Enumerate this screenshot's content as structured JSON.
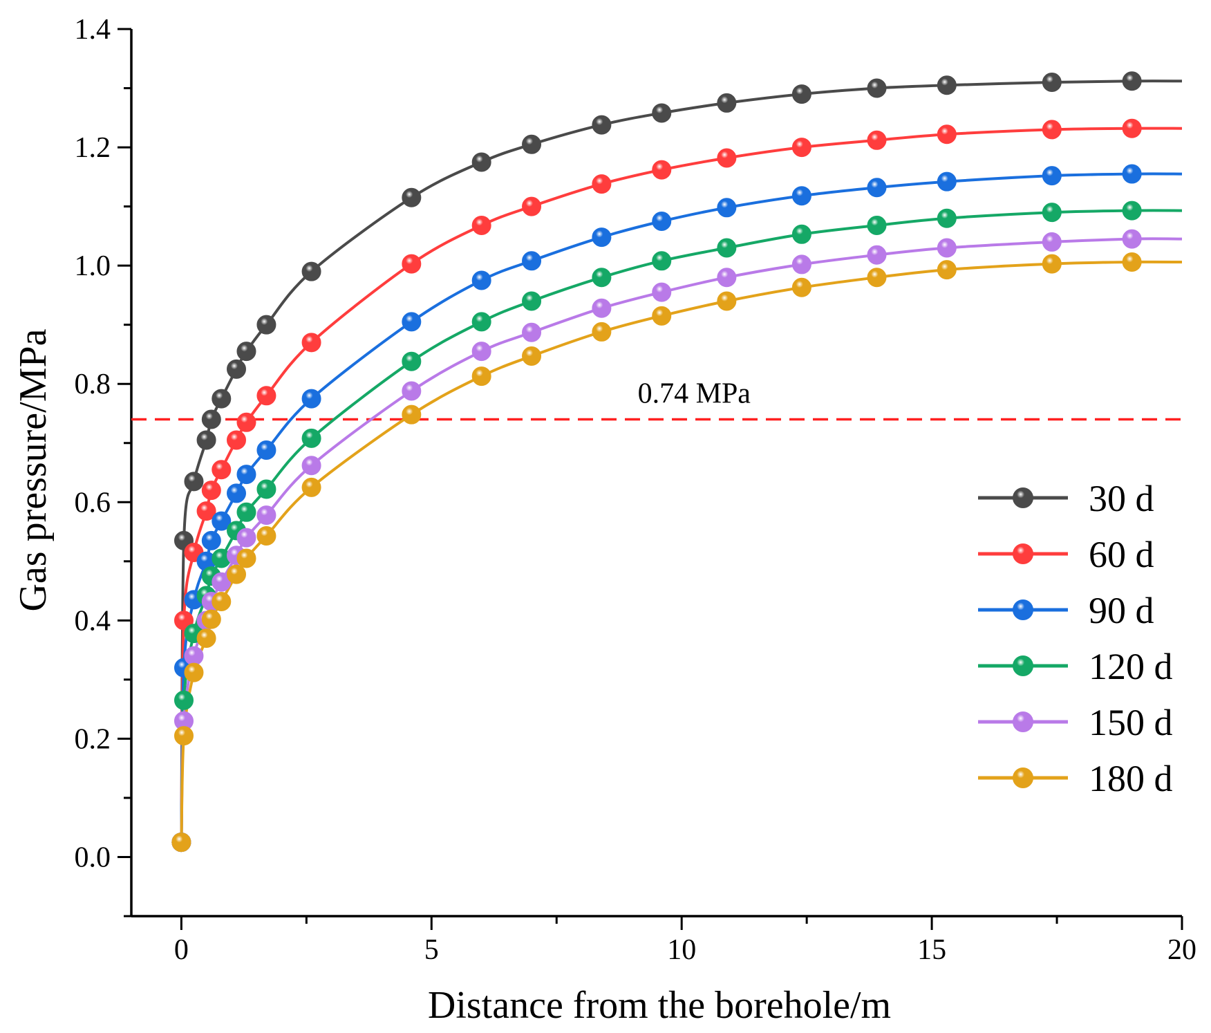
{
  "chart_data": {
    "type": "line",
    "title": "",
    "xlabel": "Distance from the borehole/m",
    "ylabel": "Gas pressure/MPa",
    "xlim": [
      -1,
      20
    ],
    "ylim": [
      -0.1,
      1.4
    ],
    "xticks": [
      0,
      5,
      10,
      15,
      20
    ],
    "yticks": [
      0.0,
      0.2,
      0.4,
      0.6,
      0.8,
      1.0,
      1.2,
      1.4
    ],
    "ytick_labels": [
      "0.0",
      "0.2",
      "0.4",
      "0.6",
      "0.8",
      "1.0",
      "1.2",
      "1.4"
    ],
    "grid": false,
    "legend_position": "right",
    "reference_line": {
      "y": 0.74,
      "label": "0.74 MPa",
      "color": "#ff2020",
      "style": "dashed"
    },
    "x": [
      0,
      0.05,
      0.25,
      0.5,
      0.6,
      0.8,
      1.1,
      1.3,
      1.7,
      2.6,
      4.6,
      6.0,
      7.0,
      8.4,
      9.6,
      10.9,
      12.4,
      13.9,
      15.3,
      17.4,
      19.0,
      20.0
    ],
    "series": [
      {
        "name": "30 d",
        "color": "#4a4a4a",
        "values": [
          0.025,
          0.535,
          0.635,
          0.705,
          0.74,
          0.775,
          0.825,
          0.855,
          0.9,
          0.99,
          1.115,
          1.175,
          1.205,
          1.238,
          1.258,
          1.275,
          1.29,
          1.3,
          1.305,
          1.31,
          1.312,
          1.312
        ]
      },
      {
        "name": "60 d",
        "color": "#ff3d3d",
        "values": [
          0.025,
          0.4,
          0.515,
          0.585,
          0.62,
          0.655,
          0.705,
          0.735,
          0.78,
          0.87,
          1.003,
          1.068,
          1.1,
          1.138,
          1.162,
          1.182,
          1.2,
          1.212,
          1.222,
          1.23,
          1.232,
          1.232
        ]
      },
      {
        "name": "90 d",
        "color": "#1a6fde",
        "values": [
          0.025,
          0.32,
          0.435,
          0.5,
          0.535,
          0.568,
          0.615,
          0.647,
          0.688,
          0.775,
          0.905,
          0.975,
          1.008,
          1.048,
          1.075,
          1.098,
          1.118,
          1.132,
          1.142,
          1.152,
          1.155,
          1.155
        ]
      },
      {
        "name": "120 d",
        "color": "#15a866",
        "values": [
          0.025,
          0.265,
          0.378,
          0.442,
          0.475,
          0.505,
          0.552,
          0.583,
          0.622,
          0.708,
          0.838,
          0.905,
          0.94,
          0.98,
          1.008,
          1.03,
          1.053,
          1.068,
          1.08,
          1.09,
          1.093,
          1.093
        ]
      },
      {
        "name": "150 d",
        "color": "#b97ae8",
        "values": [
          0.025,
          0.23,
          0.34,
          0.4,
          0.432,
          0.465,
          0.51,
          0.54,
          0.578,
          0.662,
          0.788,
          0.855,
          0.887,
          0.928,
          0.955,
          0.98,
          1.002,
          1.018,
          1.03,
          1.04,
          1.045,
          1.045
        ]
      },
      {
        "name": "180 d",
        "color": "#e3a21a",
        "values": [
          0.025,
          0.205,
          0.312,
          0.37,
          0.402,
          0.432,
          0.478,
          0.505,
          0.543,
          0.625,
          0.748,
          0.813,
          0.847,
          0.888,
          0.915,
          0.94,
          0.963,
          0.98,
          0.993,
          1.003,
          1.006,
          1.006
        ]
      }
    ]
  }
}
